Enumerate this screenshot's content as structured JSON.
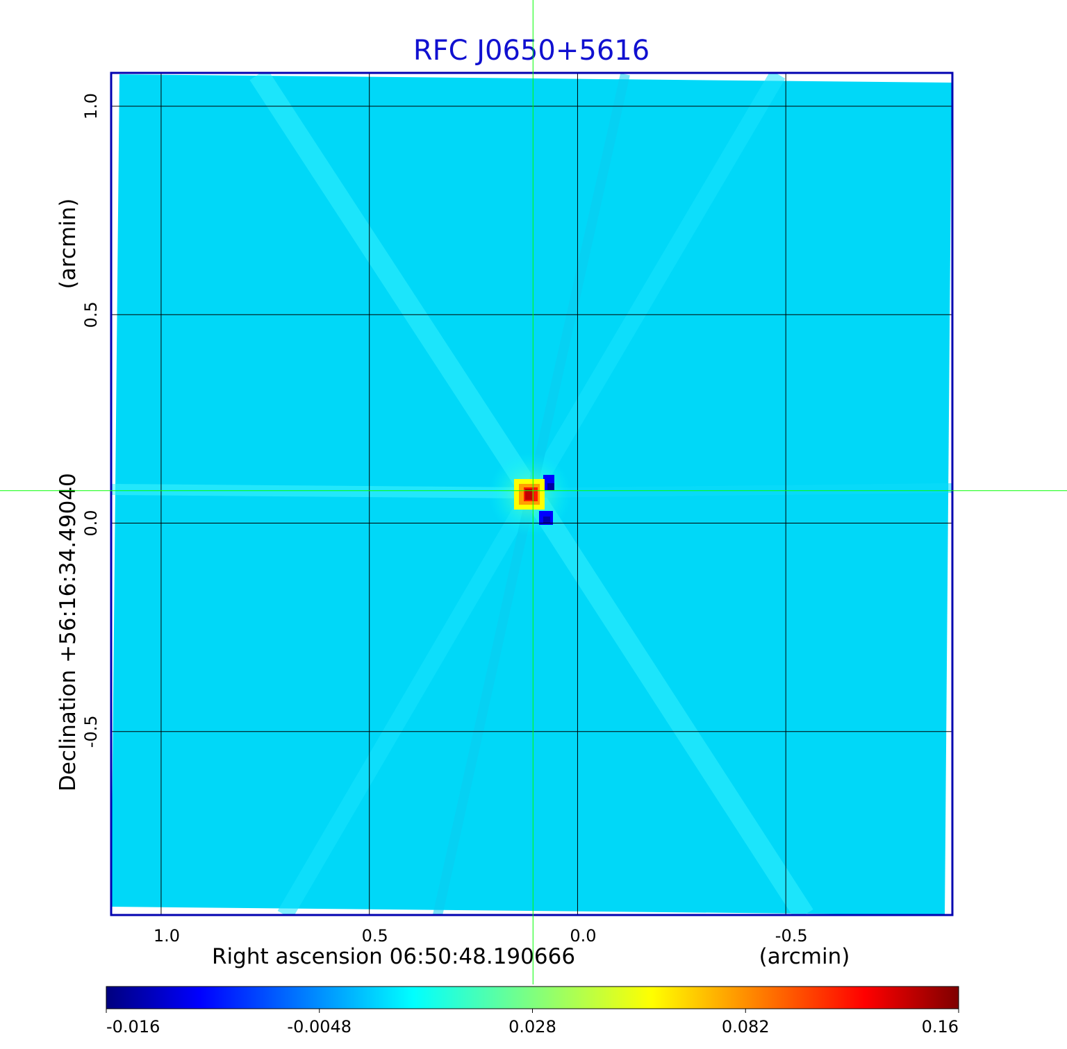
{
  "chart_data": {
    "type": "heatmap",
    "title": "RFC J0650+5616",
    "xlabel": "Right ascension  06:50:48.190666",
    "xunit": "(arcmin)",
    "ylabel": "Declination  +56:16:34.49040",
    "yunit": "(arcmin)",
    "x_ticks": [
      1.0,
      0.5,
      0.0,
      -0.5
    ],
    "x_tick_labels": [
      "1.0",
      "0.5",
      "0.0",
      "-0.5"
    ],
    "y_ticks": [
      1.0,
      0.5,
      0.0,
      -0.5
    ],
    "y_tick_labels": [
      "1.0",
      "0.5",
      "0.0",
      "-0.5"
    ],
    "xlim": [
      1.12,
      -0.9
    ],
    "ylim": [
      -0.94,
      1.08
    ],
    "grid": true,
    "crosshair": {
      "x": 0.107,
      "y": 0.078
    },
    "source": {
      "x": 0.107,
      "y": 0.078,
      "peak": 0.16
    },
    "negative_lobes": [
      {
        "x": 0.07,
        "y": 0.1,
        "value": -0.016
      },
      {
        "x": 0.07,
        "y": 0.01,
        "value": -0.016
      }
    ],
    "background_level": 0.0,
    "colorbar": {
      "colormap": "jet",
      "ticks": [
        -0.016,
        -0.0048,
        0.028,
        0.082,
        0.16
      ],
      "tick_labels": [
        "-0.016",
        "-0.0048",
        "0.028",
        "0.082",
        "0.16"
      ]
    },
    "colors": {
      "title": "#1010d0",
      "frame": "#0000b0",
      "crosshair": "#00ff00",
      "grid": "#000000"
    }
  }
}
